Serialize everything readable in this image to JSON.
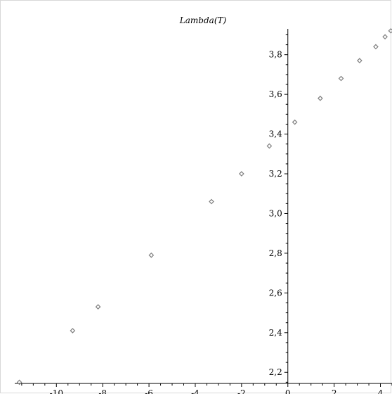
{
  "chart_data": {
    "type": "scatter",
    "title": "Lambda(T)",
    "xlabel": "",
    "ylabel": "",
    "xlim": [
      -11.8,
      4.5
    ],
    "ylim": [
      2.13,
      3.93
    ],
    "x_ticks": [
      -10,
      -8,
      -6,
      -4,
      -2,
      0,
      2,
      4
    ],
    "y_ticks": [
      2.2,
      2.4,
      2.6,
      2.8,
      3.0,
      3.2,
      3.4,
      3.6,
      3.8
    ],
    "y_tick_labels": [
      "2,2",
      "2,4",
      "2,6",
      "2,8",
      "3,0",
      "3,2",
      "3,4",
      "3,6",
      "3,8"
    ],
    "x_tick_labels": [
      "-10",
      "-8",
      "-6",
      "-4",
      "-2",
      "0",
      "2",
      "4"
    ],
    "grid": false,
    "marker": "diamond",
    "marker_color": "#808080",
    "series": [
      {
        "x": [
          -11.6,
          -9.3,
          -8.2,
          -5.9,
          -3.3,
          -2.0,
          -0.8,
          0.3,
          1.4,
          2.3,
          3.1,
          3.8,
          4.2,
          4.45
        ],
        "y": [
          2.15,
          2.41,
          2.53,
          2.79,
          3.06,
          3.2,
          3.34,
          3.46,
          3.58,
          3.68,
          3.77,
          3.84,
          3.89,
          3.92
        ]
      }
    ]
  }
}
